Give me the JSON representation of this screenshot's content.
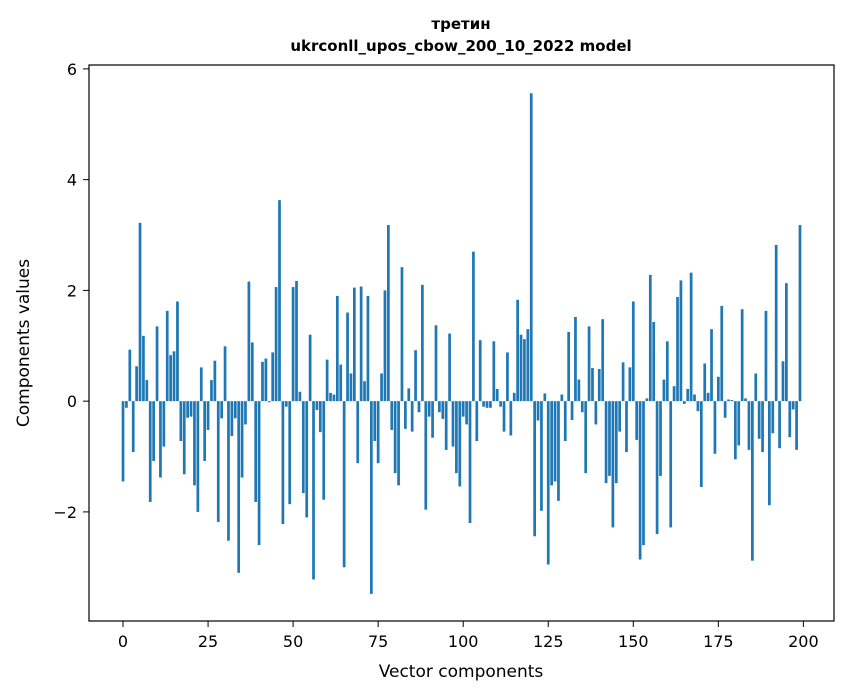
{
  "chart_data": {
    "type": "bar",
    "title_line1": "третин",
    "title_line2": "ukrconll_upos_cbow_200_10_2022 model",
    "xlabel": "Vector components",
    "ylabel": "Components values",
    "xlim": [
      -10,
      209
    ],
    "ylim": [
      -3.97,
      6.07
    ],
    "x_ticks": [
      0,
      25,
      50,
      75,
      100,
      125,
      150,
      175,
      200
    ],
    "y_ticks": [
      -2,
      0,
      2,
      4,
      6
    ],
    "y_tick_labels": [
      "−2",
      "0",
      "2",
      "4",
      "6"
    ],
    "bar_color": "#1f77b4",
    "grid": false,
    "values": [
      -1.45,
      -0.12,
      0.93,
      -0.92,
      0.63,
      3.22,
      1.18,
      0.38,
      -1.82,
      -1.08,
      1.35,
      -1.38,
      -0.82,
      1.63,
      0.83,
      0.9,
      1.8,
      -0.72,
      -1.32,
      -0.3,
      -0.28,
      -1.52,
      -2.0,
      0.61,
      -1.08,
      -0.52,
      0.38,
      0.73,
      -2.18,
      -0.31,
      0.99,
      -2.52,
      -0.63,
      -0.31,
      -3.1,
      -1.38,
      -0.42,
      2.16,
      1.06,
      -1.82,
      -2.6,
      0.71,
      0.77,
      -0.02,
      0.88,
      2.06,
      3.63,
      -2.22,
      -0.1,
      -1.86,
      2.06,
      2.17,
      0.17,
      -1.66,
      -2.1,
      1.2,
      -3.22,
      -0.16,
      -0.56,
      -1.78,
      0.75,
      0.15,
      0.12,
      1.9,
      0.66,
      -3.0,
      1.6,
      0.5,
      2.05,
      -1.12,
      2.07,
      0.36,
      1.9,
      -3.48,
      -0.72,
      -1.12,
      0.5,
      2.0,
      3.18,
      -0.52,
      -1.3,
      -1.52,
      2.42,
      -0.5,
      0.23,
      -0.55,
      0.92,
      -0.2,
      2.1,
      -1.96,
      -0.28,
      -0.66,
      1.37,
      -0.2,
      -0.32,
      -0.88,
      1.22,
      -0.82,
      -1.3,
      -1.54,
      -0.28,
      -0.42,
      -2.2,
      2.7,
      -0.72,
      1.1,
      -0.1,
      -0.12,
      -0.12,
      1.08,
      0.22,
      -0.1,
      -0.55,
      0.88,
      -0.62,
      0.15,
      1.83,
      1.2,
      1.12,
      1.3,
      5.56,
      -2.44,
      -0.35,
      -1.98,
      0.14,
      -2.95,
      -1.52,
      -1.45,
      -1.8,
      0.12,
      -0.72,
      1.25,
      -0.34,
      1.52,
      0.39,
      -0.2,
      -1.3,
      1.35,
      0.6,
      -0.42,
      0.58,
      1.48,
      -1.48,
      -1.35,
      -2.28,
      -1.48,
      -0.55,
      0.7,
      -0.92,
      0.61,
      1.8,
      -0.7,
      -2.86,
      -2.6,
      0.05,
      2.28,
      1.43,
      -2.4,
      -1.35,
      0.39,
      1.08,
      -2.28,
      0.27,
      1.88,
      2.18,
      -0.05,
      0.22,
      2.32,
      0.12,
      -0.18,
      -1.55,
      0.68,
      0.15,
      1.3,
      -0.95,
      0.44,
      1.72,
      -0.3,
      0.03,
      0.02,
      -1.05,
      -0.8,
      1.66,
      0.05,
      -0.88,
      -2.88,
      0.5,
      -0.68,
      -0.92,
      1.63,
      -1.88,
      -0.58,
      2.82,
      -0.85,
      0.72,
      2.13,
      -0.65,
      -0.15,
      -0.88,
      3.18
    ]
  }
}
